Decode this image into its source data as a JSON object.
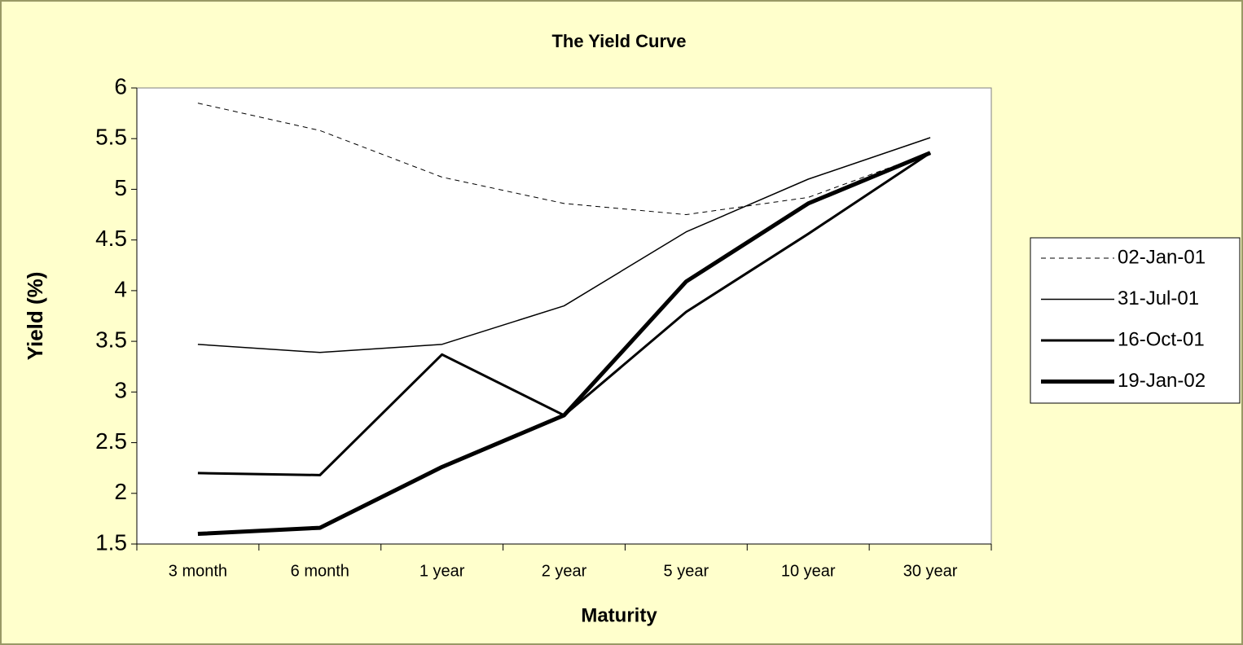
{
  "chart_data": {
    "type": "line",
    "title": "The Yield Curve",
    "x_label": "Maturity",
    "y_label": "Yield (%)",
    "categories": [
      "3 month",
      "6 month",
      "1 year",
      "2 year",
      "5 year",
      "10 year",
      "30 year"
    ],
    "series": [
      {
        "name": "02-Jan-01",
        "color": "#000000",
        "line_width": 1,
        "dashed": true,
        "values": [
          5.85,
          5.58,
          5.12,
          4.86,
          4.75,
          4.92,
          5.36
        ]
      },
      {
        "name": "31-Jul-01",
        "color": "#000000",
        "line_width": 1.5,
        "dashed": false,
        "values": [
          3.47,
          3.39,
          3.47,
          3.85,
          4.58,
          5.1,
          5.51
        ]
      },
      {
        "name": "16-Oct-01",
        "color": "#000000",
        "line_width": 3,
        "dashed": false,
        "values": [
          2.2,
          2.18,
          3.37,
          2.77,
          3.79,
          4.56,
          5.36
        ]
      },
      {
        "name": "19-Jan-02",
        "color": "#000000",
        "line_width": 5,
        "dashed": false,
        "values": [
          1.6,
          1.66,
          2.26,
          2.77,
          4.09,
          4.86,
          5.36
        ]
      }
    ],
    "ylim": [
      1.5,
      6
    ],
    "yticks": [
      1.5,
      2,
      2.5,
      3,
      3.5,
      4,
      4.5,
      5,
      5.5,
      6
    ],
    "grid": false,
    "legend": "right"
  }
}
